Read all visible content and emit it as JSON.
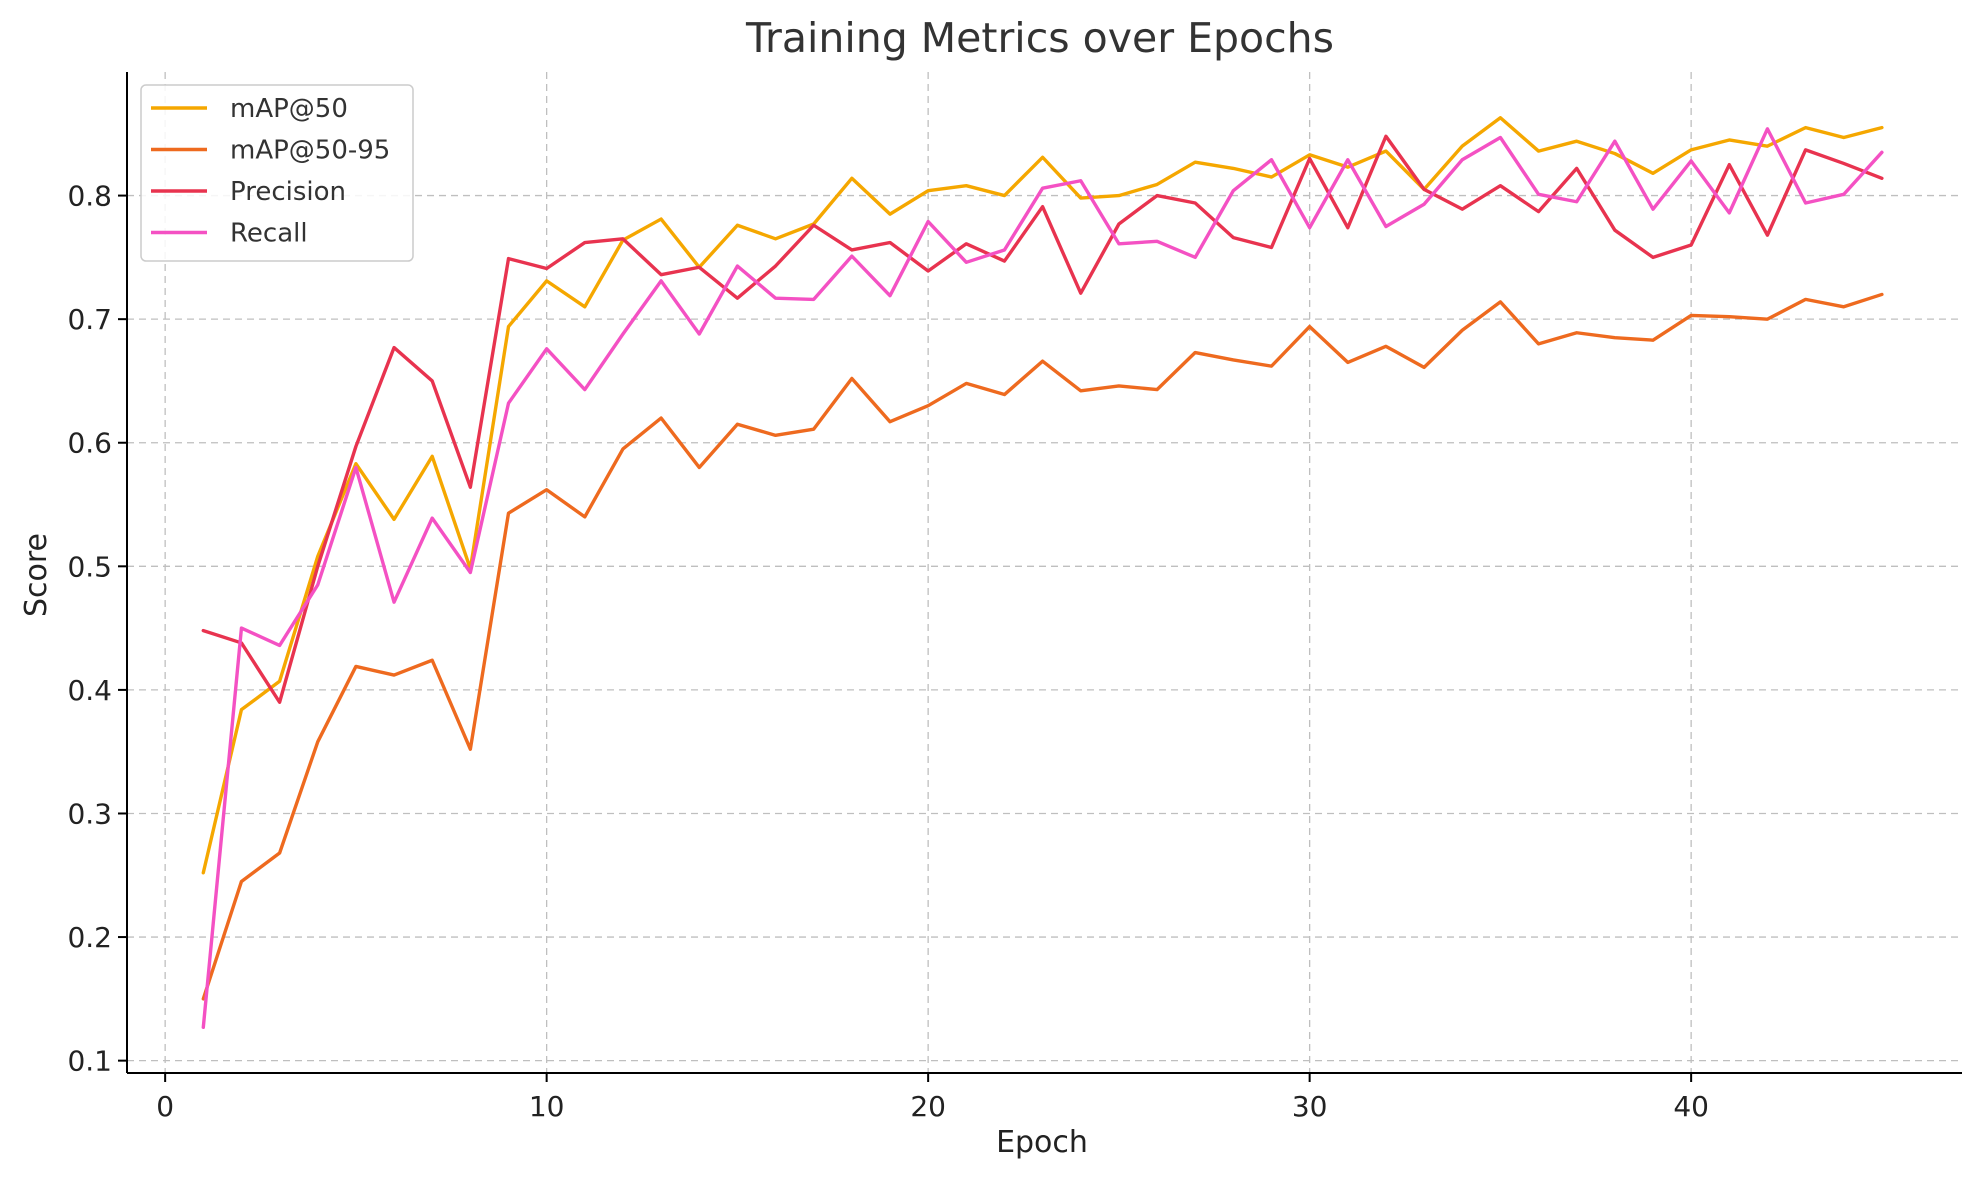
{
  "chart_data": {
    "type": "line",
    "title": "Training Metrics over Epochs",
    "xlabel": "Epoch",
    "ylabel": "Score",
    "xlim": [
      -1,
      47.1
    ],
    "ylim": [
      0.09,
      0.9
    ],
    "xticks": [
      0,
      10,
      20,
      30,
      40
    ],
    "yticks": [
      0.1,
      0.2,
      0.3,
      0.4,
      0.5,
      0.6,
      0.7,
      0.8
    ],
    "grid": true,
    "legend_position": "top-left",
    "x": [
      1,
      2,
      3,
      4,
      5,
      6,
      7,
      8,
      9,
      10,
      11,
      12,
      13,
      14,
      15,
      16,
      17,
      18,
      19,
      20,
      21,
      22,
      23,
      24,
      25,
      26,
      27,
      28,
      29,
      30,
      31,
      32,
      33,
      34,
      35,
      36,
      37,
      38,
      39,
      40,
      41,
      42,
      43,
      44,
      45
    ],
    "series": [
      {
        "name": "mAP@50",
        "color": "#f5a700",
        "values": [
          0.252,
          0.384,
          0.407,
          0.508,
          0.583,
          0.538,
          0.589,
          0.498,
          0.694,
          0.731,
          0.71,
          0.764,
          0.781,
          0.742,
          0.776,
          0.765,
          0.777,
          0.814,
          0.785,
          0.804,
          0.808,
          0.8,
          0.831,
          0.798,
          0.8,
          0.809,
          0.827,
          0.822,
          0.815,
          0.833,
          0.823,
          0.836,
          0.805,
          0.84,
          0.863,
          0.836,
          0.844,
          0.834,
          0.818,
          0.837,
          0.845,
          0.84,
          0.855,
          0.847,
          0.855
        ]
      },
      {
        "name": "mAP@50-95",
        "color": "#ee6a1f",
        "values": [
          0.15,
          0.245,
          0.268,
          0.358,
          0.419,
          0.412,
          0.424,
          0.352,
          0.543,
          0.562,
          0.54,
          0.595,
          0.62,
          0.58,
          0.615,
          0.606,
          0.611,
          0.652,
          0.617,
          0.63,
          0.648,
          0.639,
          0.666,
          0.642,
          0.646,
          0.643,
          0.673,
          0.667,
          0.662,
          0.694,
          0.665,
          0.678,
          0.661,
          0.691,
          0.714,
          0.68,
          0.689,
          0.685,
          0.683,
          0.703,
          0.702,
          0.7,
          0.716,
          0.71,
          0.72
        ]
      },
      {
        "name": "Precision",
        "color": "#e8334f",
        "values": [
          0.448,
          0.438,
          0.39,
          0.5,
          0.597,
          0.677,
          0.65,
          0.564,
          0.749,
          0.741,
          0.762,
          0.765,
          0.736,
          0.742,
          0.717,
          0.743,
          0.776,
          0.756,
          0.762,
          0.739,
          0.761,
          0.747,
          0.791,
          0.721,
          0.777,
          0.8,
          0.794,
          0.766,
          0.758,
          0.83,
          0.774,
          0.848,
          0.805,
          0.789,
          0.808,
          0.787,
          0.822,
          0.772,
          0.75,
          0.76,
          0.825,
          0.768,
          0.837,
          0.826,
          0.814
        ]
      },
      {
        "name": "Recall",
        "color": "#f451c3",
        "values": [
          0.127,
          0.45,
          0.436,
          0.485,
          0.58,
          0.471,
          0.539,
          0.495,
          0.632,
          0.676,
          0.643,
          0.688,
          0.731,
          0.688,
          0.743,
          0.717,
          0.716,
          0.751,
          0.719,
          0.779,
          0.746,
          0.756,
          0.806,
          0.812,
          0.761,
          0.763,
          0.75,
          0.804,
          0.829,
          0.774,
          0.829,
          0.775,
          0.793,
          0.829,
          0.847,
          0.801,
          0.795,
          0.844,
          0.789,
          0.828,
          0.786,
          0.854,
          0.794,
          0.801,
          0.835
        ]
      }
    ]
  }
}
